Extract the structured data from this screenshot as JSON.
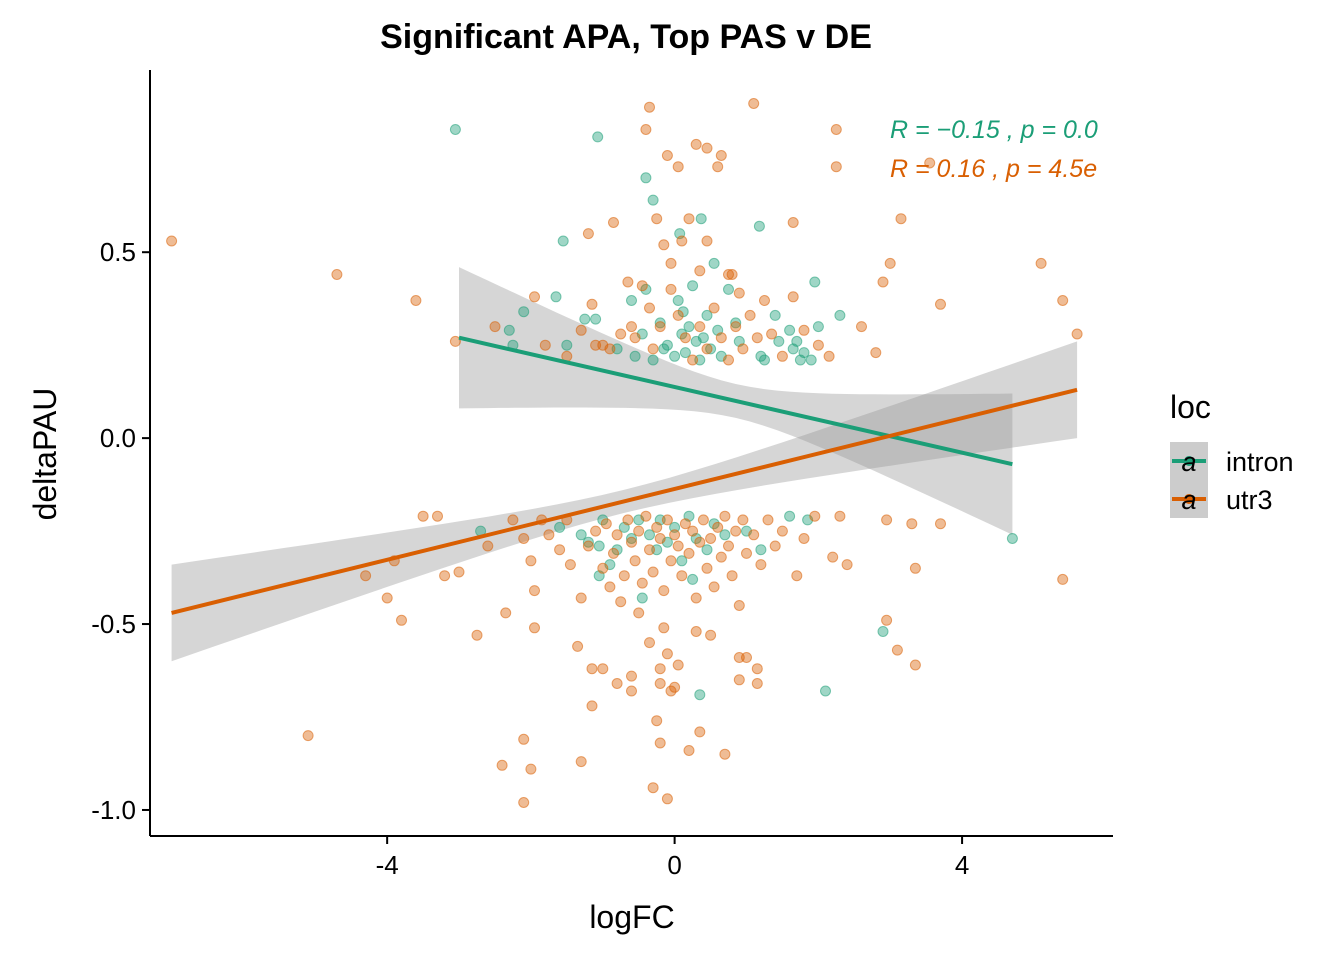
{
  "chart_data": {
    "type": "scatter",
    "title": "Significant APA, Top PAS v DE",
    "xlabel": "logFC",
    "ylabel": "deltaPAU",
    "xlim": [
      -7.3,
      6.1
    ],
    "ylim": [
      -1.07,
      0.99
    ],
    "x_ticks": [
      -4,
      0,
      4
    ],
    "x_tick_labels": [
      "-4",
      "0",
      "4"
    ],
    "y_ticks": [
      -1.0,
      -0.5,
      0.0,
      0.5
    ],
    "y_tick_labels": [
      "-1.0",
      "-0.5",
      "0.0",
      "0.5"
    ],
    "grid": false,
    "legend": {
      "title": "loc",
      "position": "right",
      "entries": [
        "intron",
        "utr3"
      ],
      "glyph": "a"
    },
    "annotations": [
      {
        "series": "intron",
        "text": "R = −0.15 , p = 0.0"
      },
      {
        "series": "utr3",
        "text": "R = 0.16 , p = 4.5e"
      }
    ],
    "series": [
      {
        "name": "intron",
        "color": "#1b9e77",
        "fit": {
          "x": [
            -3.0,
            4.7
          ],
          "y": [
            0.27,
            -0.07
          ],
          "ci_upper": [
            0.42,
            0.15
          ],
          "ci_lower": [
            0.11,
            -0.3
          ]
        },
        "points": [
          [
            -3.05,
            0.83
          ],
          [
            -1.07,
            0.81
          ],
          [
            -0.4,
            0.7
          ],
          [
            -0.3,
            0.64
          ],
          [
            0.37,
            0.59
          ],
          [
            1.18,
            0.57
          ],
          [
            0.07,
            0.55
          ],
          [
            -1.55,
            0.53
          ],
          [
            -1.65,
            0.38
          ],
          [
            -2.1,
            0.34
          ],
          [
            -2.3,
            0.29
          ],
          [
            -2.25,
            0.25
          ],
          [
            -1.5,
            0.25
          ],
          [
            -1.25,
            0.32
          ],
          [
            -1.1,
            0.32
          ],
          [
            -0.8,
            0.24
          ],
          [
            -0.6,
            0.37
          ],
          [
            -0.55,
            0.22
          ],
          [
            -0.45,
            0.28
          ],
          [
            -0.4,
            0.4
          ],
          [
            -0.3,
            0.21
          ],
          [
            -0.2,
            0.31
          ],
          [
            -0.1,
            0.25
          ],
          [
            0.0,
            0.22
          ],
          [
            0.05,
            0.37
          ],
          [
            0.1,
            0.28
          ],
          [
            0.15,
            0.23
          ],
          [
            0.2,
            0.3
          ],
          [
            0.25,
            0.41
          ],
          [
            0.3,
            0.26
          ],
          [
            0.35,
            0.21
          ],
          [
            0.45,
            0.33
          ],
          [
            0.5,
            0.24
          ],
          [
            0.55,
            0.47
          ],
          [
            0.6,
            0.29
          ],
          [
            0.65,
            0.22
          ],
          [
            0.75,
            0.4
          ],
          [
            0.85,
            0.31
          ],
          [
            0.9,
            0.26
          ],
          [
            1.2,
            0.22
          ],
          [
            1.25,
            0.21
          ],
          [
            1.4,
            0.33
          ],
          [
            1.6,
            0.29
          ],
          [
            1.7,
            0.26
          ],
          [
            1.8,
            0.23
          ],
          [
            1.9,
            0.21
          ],
          [
            1.95,
            0.42
          ],
          [
            2.0,
            0.3
          ],
          [
            2.3,
            0.33
          ],
          [
            1.75,
            0.21
          ],
          [
            1.65,
            0.24
          ],
          [
            1.45,
            0.26
          ],
          [
            -0.15,
            0.24
          ],
          [
            0.12,
            0.34
          ],
          [
            0.4,
            0.27
          ],
          [
            -2.7,
            -0.25
          ],
          [
            -1.6,
            -0.24
          ],
          [
            -1.3,
            -0.26
          ],
          [
            -1.2,
            -0.28
          ],
          [
            -1.05,
            -0.29
          ],
          [
            -0.9,
            -0.34
          ],
          [
            -1.05,
            -0.37
          ],
          [
            -1.0,
            -0.22
          ],
          [
            -0.8,
            -0.3
          ],
          [
            -0.7,
            -0.24
          ],
          [
            -0.6,
            -0.27
          ],
          [
            -0.5,
            -0.22
          ],
          [
            -0.35,
            -0.26
          ],
          [
            -0.25,
            -0.3
          ],
          [
            -0.2,
            -0.22
          ],
          [
            -0.1,
            -0.28
          ],
          [
            0.0,
            -0.24
          ],
          [
            0.1,
            -0.33
          ],
          [
            0.2,
            -0.21
          ],
          [
            0.3,
            -0.27
          ],
          [
            0.45,
            -0.3
          ],
          [
            0.55,
            -0.23
          ],
          [
            0.7,
            -0.26
          ],
          [
            1.0,
            -0.25
          ],
          [
            1.2,
            -0.3
          ],
          [
            1.6,
            -0.21
          ],
          [
            1.85,
            -0.22
          ],
          [
            0.35,
            -0.69
          ],
          [
            2.1,
            -0.68
          ],
          [
            2.9,
            -0.52
          ],
          [
            4.7,
            -0.27
          ],
          [
            -0.45,
            -0.43
          ],
          [
            0.25,
            -0.38
          ]
        ]
      },
      {
        "name": "utr3",
        "color": "#d95f02",
        "fit": {
          "x": [
            -7.0,
            5.6
          ],
          "y": [
            -0.47,
            0.13
          ],
          "ci_upper": [
            -0.33,
            0.24
          ],
          "ci_lower": [
            -0.62,
            0.01
          ]
        },
        "points": [
          [
            -7.0,
            0.53
          ],
          [
            -4.7,
            0.44
          ],
          [
            -3.6,
            0.37
          ],
          [
            -3.05,
            0.26
          ],
          [
            -1.95,
            0.38
          ],
          [
            -1.15,
            0.36
          ],
          [
            -1.1,
            0.25
          ],
          [
            -0.35,
            0.89
          ],
          [
            -0.4,
            0.83
          ],
          [
            0.3,
            0.79
          ],
          [
            0.45,
            0.78
          ],
          [
            0.65,
            0.76
          ],
          [
            1.1,
            0.9
          ],
          [
            2.25,
            0.83
          ],
          [
            2.25,
            0.73
          ],
          [
            -0.1,
            0.76
          ],
          [
            0.05,
            0.73
          ],
          [
            0.6,
            0.73
          ],
          [
            -1.2,
            0.55
          ],
          [
            -0.85,
            0.58
          ],
          [
            -0.65,
            0.42
          ],
          [
            -0.25,
            0.59
          ],
          [
            -0.15,
            0.52
          ],
          [
            0.1,
            0.53
          ],
          [
            0.2,
            0.59
          ],
          [
            0.45,
            0.53
          ],
          [
            0.8,
            0.44
          ],
          [
            0.9,
            0.39
          ],
          [
            -0.45,
            0.41
          ],
          [
            -0.35,
            0.35
          ],
          [
            -0.6,
            0.3
          ],
          [
            -0.75,
            0.28
          ],
          [
            -0.9,
            0.24
          ],
          [
            -0.55,
            0.27
          ],
          [
            -0.3,
            0.24
          ],
          [
            -0.2,
            0.3
          ],
          [
            -0.05,
            0.4
          ],
          [
            0.05,
            0.33
          ],
          [
            0.15,
            0.27
          ],
          [
            0.25,
            0.21
          ],
          [
            0.35,
            0.3
          ],
          [
            0.45,
            0.24
          ],
          [
            0.55,
            0.35
          ],
          [
            0.65,
            0.27
          ],
          [
            0.75,
            0.21
          ],
          [
            0.85,
            0.3
          ],
          [
            0.95,
            0.24
          ],
          [
            1.05,
            0.33
          ],
          [
            1.15,
            0.27
          ],
          [
            1.25,
            0.37
          ],
          [
            1.35,
            0.28
          ],
          [
            1.5,
            0.22
          ],
          [
            1.65,
            0.38
          ],
          [
            1.8,
            0.29
          ],
          [
            2.0,
            0.25
          ],
          [
            2.15,
            0.22
          ],
          [
            2.6,
            0.3
          ],
          [
            2.8,
            0.23
          ],
          [
            2.9,
            0.42
          ],
          [
            3.0,
            0.47
          ],
          [
            3.15,
            0.59
          ],
          [
            3.55,
            0.74
          ],
          [
            3.7,
            0.36
          ],
          [
            5.1,
            0.47
          ],
          [
            5.4,
            0.37
          ],
          [
            5.6,
            0.28
          ],
          [
            1.65,
            0.58
          ],
          [
            -0.05,
            0.47
          ],
          [
            0.35,
            0.45
          ],
          [
            0.75,
            0.44
          ],
          [
            -1.0,
            0.25
          ],
          [
            -1.3,
            0.29
          ],
          [
            -1.5,
            0.22
          ],
          [
            -1.8,
            0.25
          ],
          [
            -2.5,
            0.3
          ],
          [
            -5.1,
            -0.8
          ],
          [
            -4.3,
            -0.37
          ],
          [
            -4.0,
            -0.43
          ],
          [
            -3.8,
            -0.49
          ],
          [
            -3.9,
            -0.33
          ],
          [
            -3.5,
            -0.21
          ],
          [
            -3.3,
            -0.21
          ],
          [
            -3.2,
            -0.37
          ],
          [
            -3.0,
            -0.36
          ],
          [
            -2.75,
            -0.53
          ],
          [
            -2.6,
            -0.29
          ],
          [
            -2.35,
            -0.47
          ],
          [
            -2.25,
            -0.22
          ],
          [
            -2.1,
            -0.27
          ],
          [
            -2.0,
            -0.33
          ],
          [
            -1.95,
            -0.41
          ],
          [
            -1.95,
            -0.51
          ],
          [
            -1.85,
            -0.22
          ],
          [
            -1.75,
            -0.26
          ],
          [
            -1.6,
            -0.3
          ],
          [
            -1.5,
            -0.22
          ],
          [
            -1.45,
            -0.34
          ],
          [
            -1.3,
            -0.43
          ],
          [
            -1.35,
            -0.56
          ],
          [
            -1.2,
            -0.29
          ],
          [
            -1.1,
            -0.25
          ],
          [
            -1.0,
            -0.35
          ],
          [
            -0.95,
            -0.23
          ],
          [
            -0.9,
            -0.4
          ],
          [
            -0.85,
            -0.31
          ],
          [
            -0.8,
            -0.26
          ],
          [
            -0.75,
            -0.44
          ],
          [
            -0.7,
            -0.37
          ],
          [
            -0.65,
            -0.22
          ],
          [
            -0.6,
            -0.28
          ],
          [
            -0.55,
            -0.33
          ],
          [
            -0.5,
            -0.25
          ],
          [
            -0.45,
            -0.39
          ],
          [
            -0.4,
            -0.21
          ],
          [
            -0.35,
            -0.3
          ],
          [
            -0.3,
            -0.36
          ],
          [
            -0.25,
            -0.24
          ],
          [
            -0.2,
            -0.27
          ],
          [
            -0.15,
            -0.41
          ],
          [
            -0.1,
            -0.22
          ],
          [
            -0.05,
            -0.33
          ],
          [
            0.0,
            -0.26
          ],
          [
            0.05,
            -0.29
          ],
          [
            0.1,
            -0.37
          ],
          [
            0.15,
            -0.23
          ],
          [
            0.2,
            -0.31
          ],
          [
            0.25,
            -0.25
          ],
          [
            0.3,
            -0.43
          ],
          [
            0.35,
            -0.28
          ],
          [
            0.4,
            -0.22
          ],
          [
            0.45,
            -0.35
          ],
          [
            0.5,
            -0.27
          ],
          [
            0.55,
            -0.4
          ],
          [
            0.6,
            -0.24
          ],
          [
            0.65,
            -0.32
          ],
          [
            0.7,
            -0.21
          ],
          [
            0.75,
            -0.29
          ],
          [
            0.8,
            -0.37
          ],
          [
            0.85,
            -0.25
          ],
          [
            0.9,
            -0.45
          ],
          [
            0.95,
            -0.22
          ],
          [
            1.0,
            -0.31
          ],
          [
            1.1,
            -0.26
          ],
          [
            1.2,
            -0.34
          ],
          [
            1.3,
            -0.22
          ],
          [
            1.4,
            -0.29
          ],
          [
            1.5,
            -0.25
          ],
          [
            1.7,
            -0.37
          ],
          [
            1.8,
            -0.27
          ],
          [
            1.95,
            -0.21
          ],
          [
            2.2,
            -0.32
          ],
          [
            2.3,
            -0.21
          ],
          [
            2.4,
            -0.34
          ],
          [
            2.95,
            -0.22
          ],
          [
            2.95,
            -0.49
          ],
          [
            3.1,
            -0.57
          ],
          [
            3.3,
            -0.23
          ],
          [
            3.35,
            -0.35
          ],
          [
            3.35,
            -0.61
          ],
          [
            3.7,
            -0.23
          ],
          [
            5.4,
            -0.38
          ],
          [
            -0.6,
            -0.64
          ],
          [
            -0.5,
            -0.47
          ],
          [
            -0.35,
            -0.55
          ],
          [
            -0.15,
            -0.51
          ],
          [
            -0.1,
            -0.58
          ],
          [
            0.0,
            -0.67
          ],
          [
            0.05,
            -0.61
          ],
          [
            0.3,
            -0.52
          ],
          [
            0.5,
            -0.53
          ],
          [
            0.9,
            -0.59
          ],
          [
            1.15,
            -0.62
          ],
          [
            -0.2,
            -0.62
          ],
          [
            -0.6,
            -0.68
          ],
          [
            -1.0,
            -0.62
          ],
          [
            -0.8,
            -0.66
          ],
          [
            -1.15,
            -0.62
          ],
          [
            -1.15,
            -0.72
          ],
          [
            -1.3,
            -0.87
          ],
          [
            -2.1,
            -0.81
          ],
          [
            -2.0,
            -0.89
          ],
          [
            -2.4,
            -0.88
          ],
          [
            -2.1,
            -0.98
          ],
          [
            -0.25,
            -0.76
          ],
          [
            -0.2,
            -0.82
          ],
          [
            -0.3,
            -0.94
          ],
          [
            -0.1,
            -0.97
          ],
          [
            0.2,
            -0.84
          ],
          [
            0.35,
            -0.79
          ],
          [
            0.7,
            -0.85
          ],
          [
            0.9,
            -0.65
          ],
          [
            1.15,
            -0.66
          ],
          [
            1.0,
            -0.59
          ],
          [
            -0.05,
            -0.68
          ],
          [
            -0.2,
            -0.66
          ]
        ]
      }
    ]
  }
}
